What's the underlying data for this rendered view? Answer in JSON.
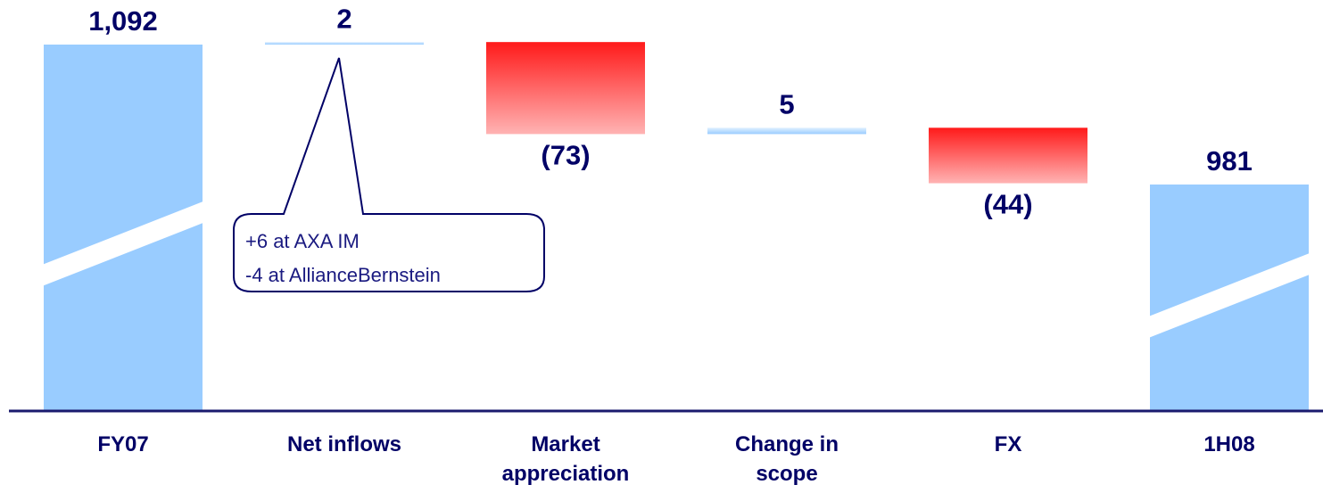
{
  "chart_data": {
    "type": "waterfall",
    "categories": [
      "FY07",
      "Net inflows",
      "Market appreciation",
      "Change in scope",
      "FX",
      "1H08"
    ],
    "values": [
      1092,
      2,
      -73,
      5,
      -44,
      981
    ],
    "value_labels": [
      "1,092",
      "2",
      "(73)",
      "5",
      "(44)",
      "981"
    ],
    "measures": [
      "total",
      "relative",
      "relative",
      "relative",
      "relative",
      "total"
    ],
    "colors": {
      "total": "#99ccff",
      "increase": "#99ccff",
      "decrease": "#ff1a1a"
    },
    "annotations": [
      "+6 at AXA IM",
      "-4 at AllianceBernstein"
    ]
  }
}
